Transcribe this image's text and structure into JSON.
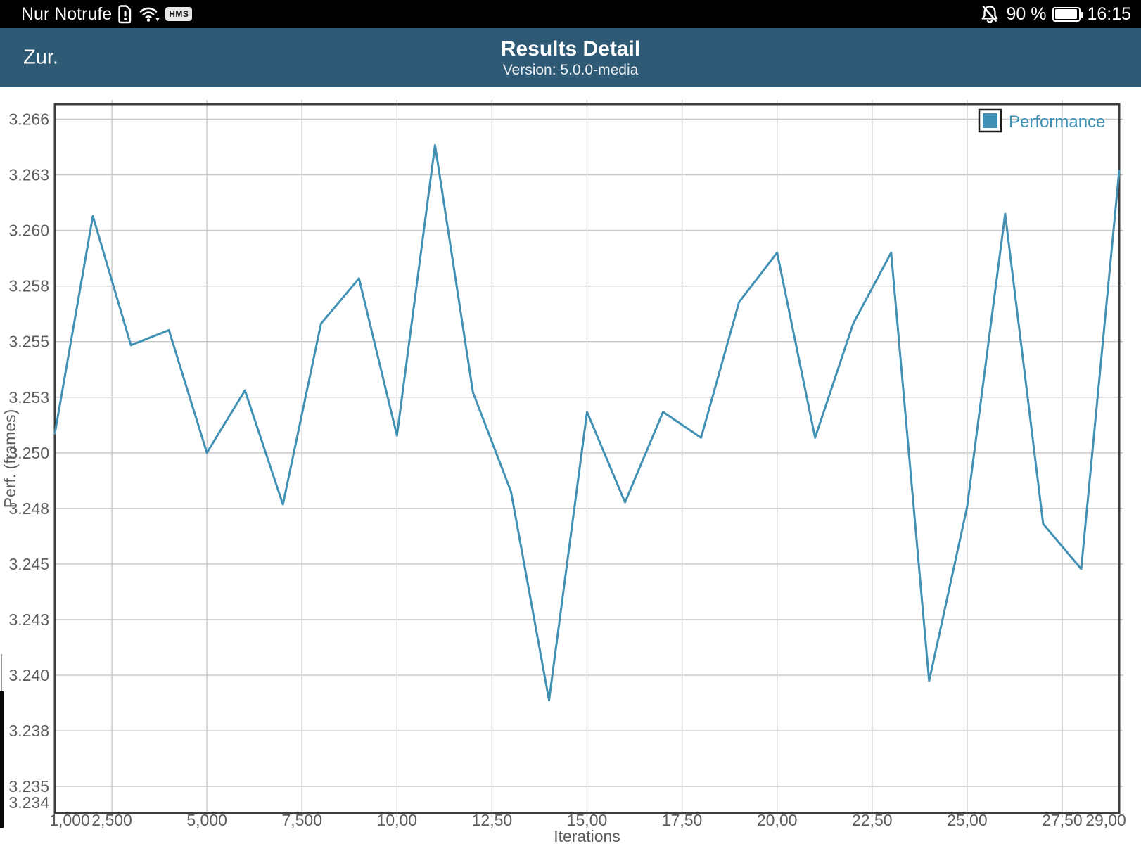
{
  "status_bar": {
    "carrier_text": "Nur Notrufe",
    "hms_label": "HMS",
    "battery_percent": "90 %",
    "time": "16:15",
    "icons": [
      "sim-alert-icon",
      "wifi-icon",
      "notifications-off-icon",
      "battery-icon"
    ]
  },
  "header": {
    "back_label": "Zur.",
    "title": "Results Detail",
    "subtitle": "Version: 5.0.0-media",
    "background": "#2e5a76"
  },
  "chart_data": {
    "type": "line",
    "title": "",
    "xlabel": "Iterations",
    "ylabel": "Perf. (frames)",
    "legend_position": "top-right",
    "grid": true,
    "xlim": [
      1000,
      29000
    ],
    "ylim": [
      3.2339,
      3.2667
    ],
    "y_ticks": [
      "3.266",
      "3.263",
      "3.260",
      "3.258",
      "3.255",
      "3.253",
      "3.250",
      "3.248",
      "3.245",
      "3.243",
      "3.240",
      "3.238",
      "3.235"
    ],
    "y_axis_bottom_label": "3.234",
    "x_ticks": [
      {
        "label": "1,000",
        "value": 1000,
        "grid": false
      },
      {
        "label": "2,500",
        "value": 2500,
        "grid": true
      },
      {
        "label": "5,000",
        "value": 5000,
        "grid": true
      },
      {
        "label": "7,500",
        "value": 7500,
        "grid": true
      },
      {
        "label": "10,00",
        "value": 10000,
        "grid": true
      },
      {
        "label": "12,50",
        "value": 12500,
        "grid": true
      },
      {
        "label": "15,00",
        "value": 15000,
        "grid": true
      },
      {
        "label": "17,50",
        "value": 17500,
        "grid": true
      },
      {
        "label": "20,00",
        "value": 20000,
        "grid": true
      },
      {
        "label": "22,50",
        "value": 22500,
        "grid": true
      },
      {
        "label": "25,00",
        "value": 25000,
        "grid": true
      },
      {
        "label": "27,50",
        "value": 27500,
        "grid": true
      },
      {
        "label": "29,00",
        "value": 29000,
        "grid": false
      }
    ],
    "series": [
      {
        "name": "Performance",
        "color": "#4191b5",
        "x": [
          1000,
          2000,
          3000,
          4000,
          5000,
          6000,
          7000,
          8000,
          9000,
          10000,
          11000,
          12000,
          13000,
          14000,
          15000,
          16000,
          17000,
          18000,
          19000,
          20000,
          21000,
          22000,
          23000,
          24000,
          25000,
          26000,
          27000,
          28000,
          29000
        ],
        "values": [
          3.2514,
          3.2615,
          3.2555,
          3.2562,
          3.2505,
          3.2534,
          3.2481,
          3.2565,
          3.2586,
          3.2513,
          3.2648,
          3.2533,
          3.2487,
          3.239,
          3.2524,
          3.2482,
          3.2524,
          3.2512,
          3.2575,
          3.2598,
          3.2512,
          3.2565,
          3.2598,
          3.2399,
          3.248,
          3.2616,
          3.2472,
          3.2451,
          3.2636
        ]
      }
    ],
    "colors": {
      "grid": "#c7c7c7",
      "border": "#3e3e3e",
      "tick_label": "#5d5d5d"
    }
  }
}
